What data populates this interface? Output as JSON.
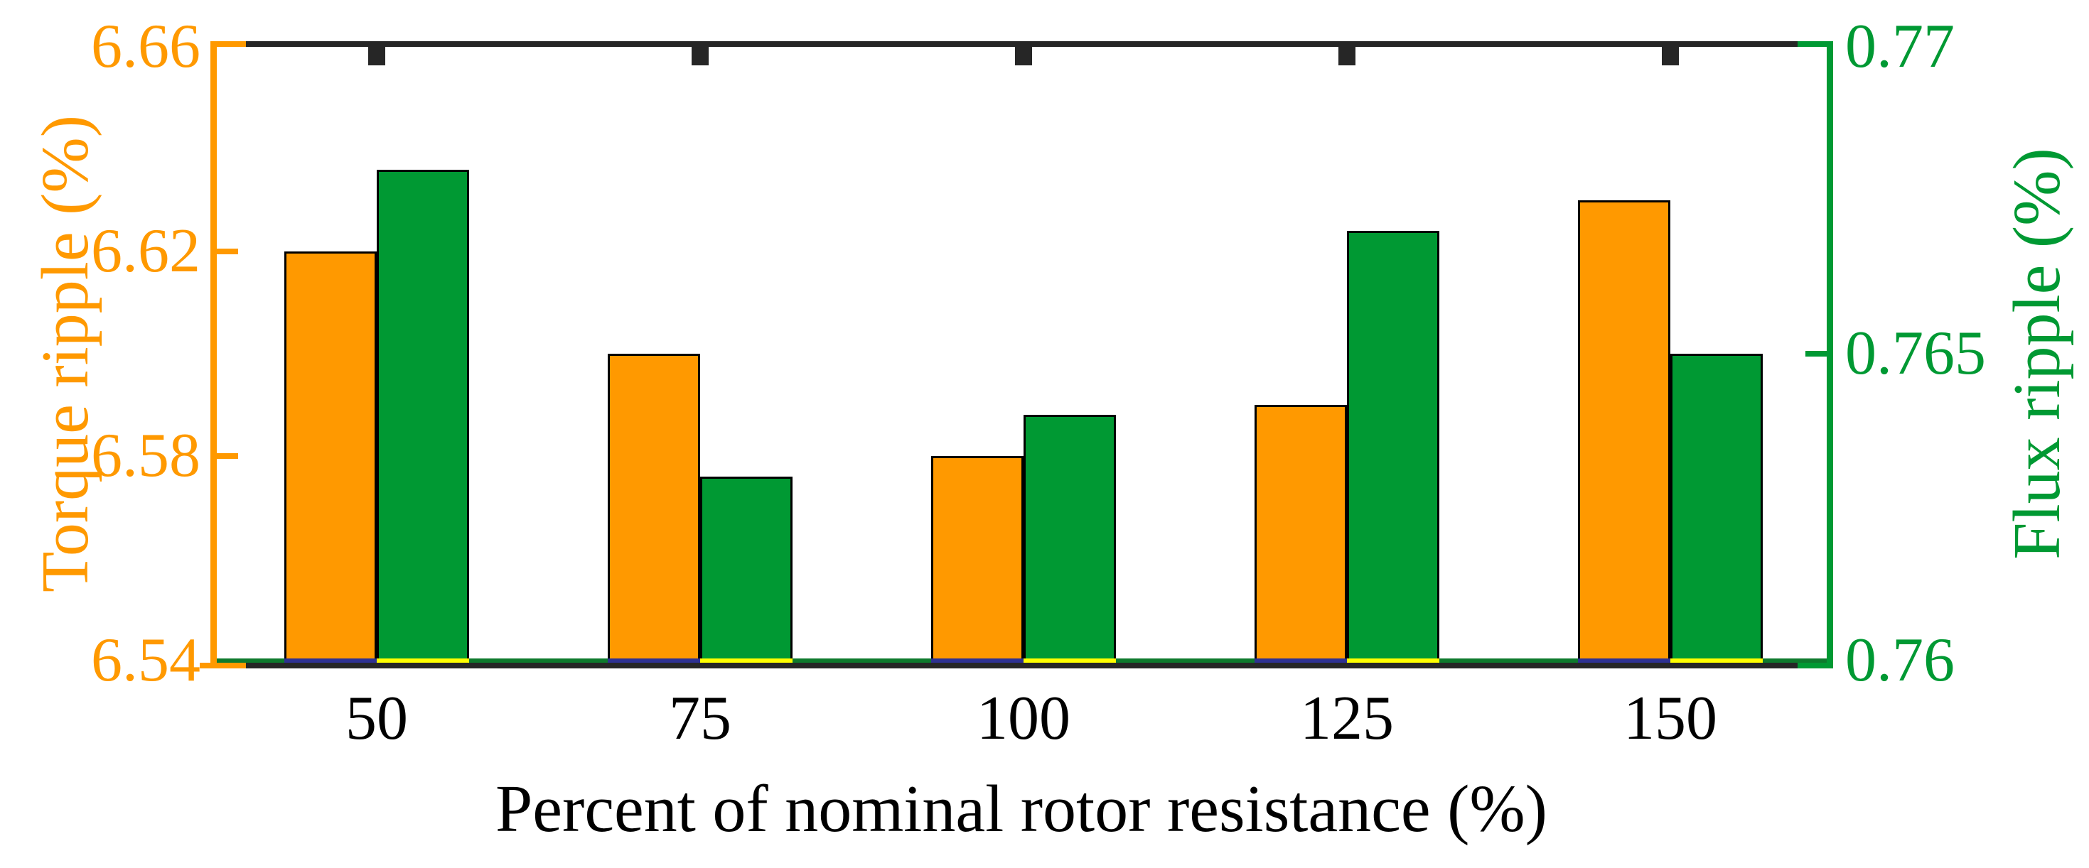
{
  "figure": {
    "xlabel": "Percent of nominal rotor resistance (%)",
    "left_axis": {
      "label": "Torque ripple (%)",
      "color": "#FF9900",
      "tick_labels": [
        "6.54",
        "6.58",
        "6.62",
        "6.66"
      ],
      "tick_values": [
        6.54,
        6.58,
        6.62,
        6.66
      ],
      "min": 6.54,
      "max": 6.66
    },
    "right_axis": {
      "label": "Flux ripple (%)",
      "color": "#009933",
      "tick_labels": [
        "0.76",
        "0.765",
        "0.77"
      ],
      "tick_values": [
        0.76,
        0.765,
        0.77
      ],
      "min": 0.76,
      "max": 0.77
    },
    "frame_color": "#262626"
  },
  "chart_data": {
    "type": "bar",
    "title": "",
    "categories": [
      "50",
      "75",
      "100",
      "125",
      "150"
    ],
    "xlabel": "Percent of nominal rotor resistance (%)",
    "series": [
      {
        "name": "Torque ripple",
        "axis": "left",
        "color": "#FF9900",
        "values": [
          6.62,
          6.6,
          6.58,
          6.59,
          6.63
        ]
      },
      {
        "name": "Flux ripple",
        "axis": "right",
        "color": "#009933",
        "values": [
          0.768,
          0.763,
          0.764,
          0.767,
          0.765
        ]
      }
    ],
    "left_ylabel": "Torque ripple (%)",
    "right_ylabel": "Flux ripple (%)",
    "left_ylim": [
      6.54,
      6.66
    ],
    "right_ylim": [
      0.76,
      0.77
    ],
    "left_yticks": [
      6.54,
      6.58,
      6.62,
      6.66
    ],
    "right_yticks": [
      0.76,
      0.765,
      0.77
    ],
    "grid": false,
    "legend_position": "none",
    "baseline_series": {
      "under_torque_bars_color": "#2E3192",
      "under_flux_bars_color": "#FFFF00",
      "gap_line_color": "#0E7A2D"
    }
  }
}
